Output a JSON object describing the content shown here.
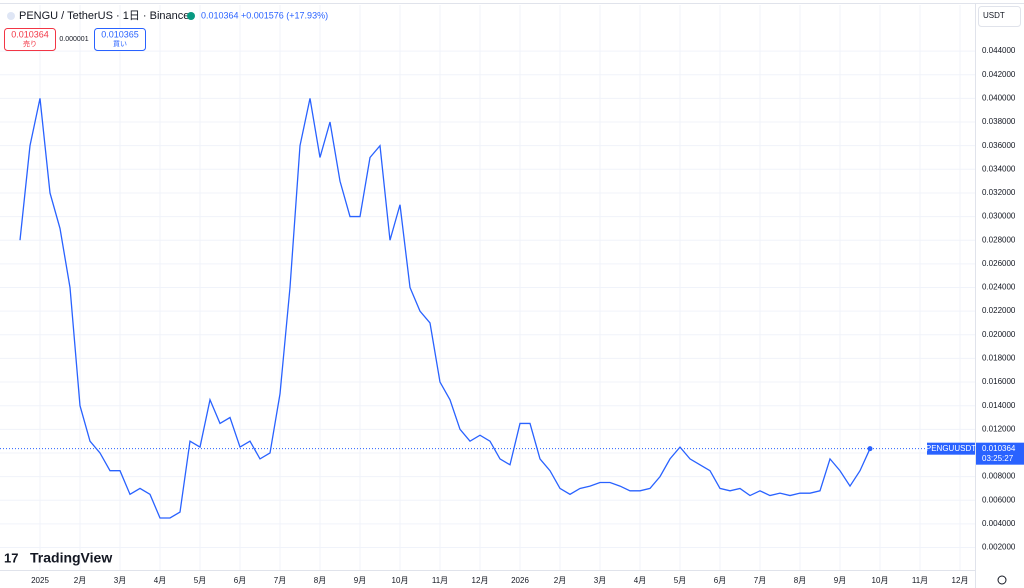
{
  "chart_data": {
    "type": "line",
    "symbol": "PENGU / TetherUS · 1日 · Binance",
    "change": "+0.001576 (+17.93%)",
    "sell_price": "0.010364",
    "sell_label": "売り",
    "spread": "0.000001",
    "buy_price": "0.010365",
    "buy_label": "買い",
    "currency": "USDT",
    "price_tag_name": "PENGUUSDT",
    "countdown": "03:25:27",
    "logo": "TradingView",
    "categories": [
      null,
      null,
      "2025",
      null,
      null,
      null,
      "2月",
      null,
      null,
      null,
      "3月",
      null,
      null,
      null,
      "4月",
      null,
      null,
      null,
      "5月",
      null,
      null,
      null,
      "6月",
      null,
      null,
      null,
      "7月",
      null,
      null,
      null,
      "8月",
      null,
      null,
      null,
      "9月",
      null,
      null,
      null,
      "10月",
      null,
      null,
      null,
      "11月",
      null,
      null,
      null,
      "12月",
      null,
      null,
      null,
      "2026",
      null,
      null,
      null,
      "2月",
      null,
      null,
      null,
      "3月",
      null,
      null,
      null,
      "4月",
      null,
      null,
      null,
      "5月",
      null,
      null,
      null,
      "6月",
      null,
      null,
      null,
      "7月",
      null,
      null,
      null,
      "8月",
      null,
      null,
      null,
      "9月",
      null,
      null,
      null,
      "10月",
      null,
      null,
      null,
      "11月",
      null,
      null,
      null,
      "12月",
      null
    ],
    "series": [
      {
        "name": "PENGUUSDT",
        "color": "#2962ff",
        "values": [
          0.028,
          0.036,
          0.04,
          0.032,
          0.029,
          0.024,
          0.014,
          0.011,
          0.01,
          0.0085,
          0.0085,
          0.0065,
          0.007,
          0.0065,
          0.0045,
          0.0045,
          0.005,
          0.011,
          0.0105,
          0.0145,
          0.0125,
          0.013,
          0.0105,
          0.011,
          0.0095,
          0.01,
          0.015,
          0.024,
          0.036,
          0.04,
          0.035,
          0.038,
          0.033,
          0.03,
          0.03,
          0.035,
          0.036,
          0.028,
          0.031,
          0.024,
          0.022,
          0.021,
          0.016,
          0.0145,
          0.012,
          0.011,
          0.0115,
          0.011,
          0.0095,
          0.009,
          0.0125,
          0.0125,
          0.0095,
          0.0085,
          0.007,
          0.0065,
          0.007,
          0.0072,
          0.0075,
          0.0075,
          0.0072,
          0.0068,
          0.0068,
          0.007,
          0.008,
          0.0095,
          0.0105,
          0.0095,
          0.009,
          0.0085,
          0.007,
          0.0068,
          0.007,
          0.0064,
          0.0068,
          0.0064,
          0.0066,
          0.0064,
          0.0066,
          0.0066,
          0.0068,
          0.0095,
          0.0085,
          0.0072,
          0.0085,
          0.010364,
          null,
          null,
          null,
          null,
          null,
          null,
          null,
          null,
          null,
          null
        ]
      }
    ],
    "ylim": [
      0.0001,
      0.0479
    ],
    "yticks": [
      {
        "value": 0.002,
        "label": "0.002000"
      },
      {
        "value": 0.004,
        "label": "0.004000"
      },
      {
        "value": 0.006,
        "label": "0.006000"
      },
      {
        "value": 0.008,
        "label": "0.008000"
      },
      {
        "value": 0.01,
        "label": "0.010000"
      },
      {
        "value": 0.012,
        "label": "0.012000"
      },
      {
        "value": 0.014,
        "label": "0.014000"
      },
      {
        "value": 0.016,
        "label": "0.016000"
      },
      {
        "value": 0.018,
        "label": "0.018000"
      },
      {
        "value": 0.02,
        "label": "0.020000"
      },
      {
        "value": 0.022,
        "label": "0.022000"
      },
      {
        "value": 0.024,
        "label": "0.024000"
      },
      {
        "value": 0.026,
        "label": "0.026000"
      },
      {
        "value": 0.028,
        "label": "0.028000"
      },
      {
        "value": 0.03,
        "label": "0.030000"
      },
      {
        "value": 0.032,
        "label": "0.032000"
      },
      {
        "value": 0.034,
        "label": "0.034000"
      },
      {
        "value": 0.036,
        "label": "0.036000"
      },
      {
        "value": 0.038,
        "label": "0.038000"
      },
      {
        "value": 0.04,
        "label": "0.040000"
      },
      {
        "value": 0.042,
        "label": "0.042000"
      },
      {
        "value": 0.044,
        "label": "0.044000"
      }
    ],
    "grid": true
  }
}
